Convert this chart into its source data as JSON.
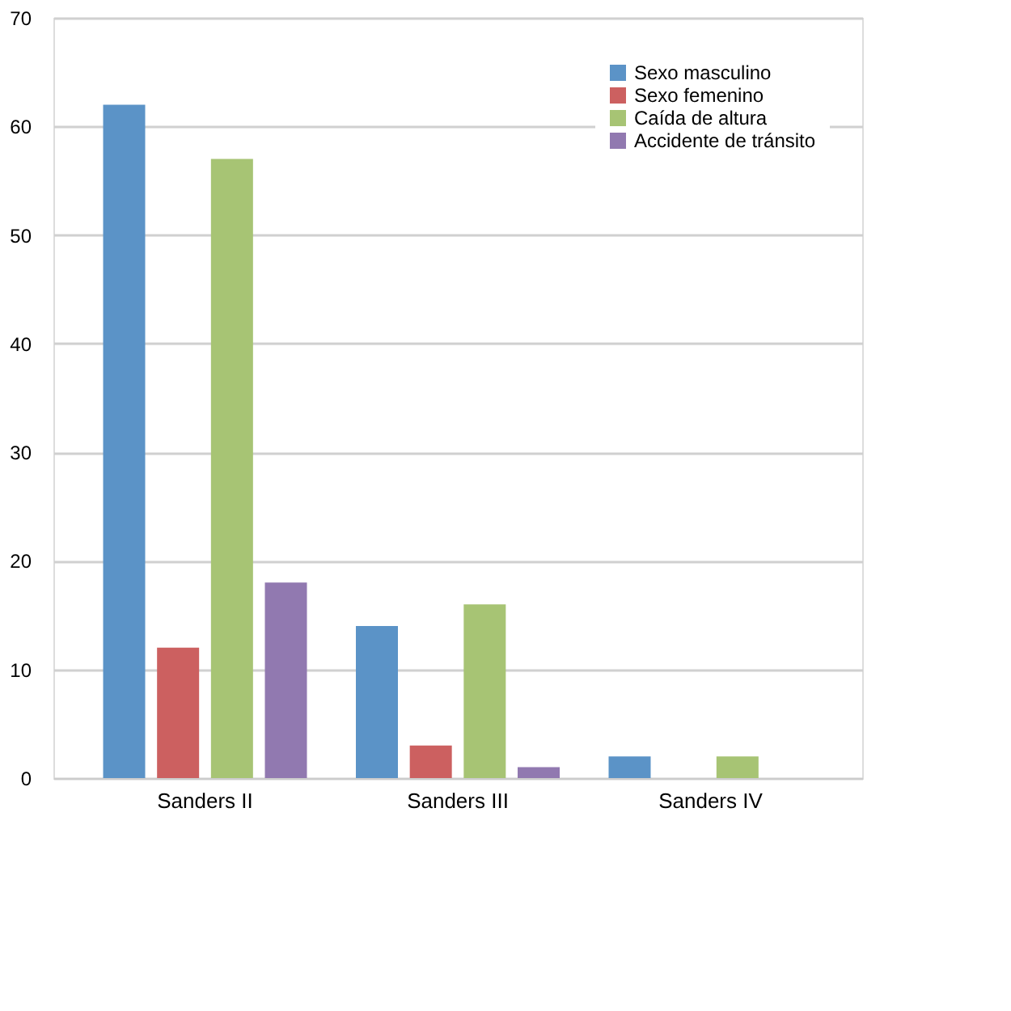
{
  "chart_data": {
    "type": "bar",
    "categories": [
      "Sanders II",
      "Sanders III",
      "Sanders IV"
    ],
    "series": [
      {
        "name": "Sexo masculino",
        "color": "#5b93c7",
        "values": [
          62,
          14,
          2
        ]
      },
      {
        "name": "Sexo femenino",
        "color": "#cc6060",
        "values": [
          12,
          3,
          0
        ]
      },
      {
        "name": "Caída de altura",
        "color": "#a7c474",
        "values": [
          57,
          16,
          2
        ]
      },
      {
        "name": "Accidente de tránsito",
        "color": "#9179b0",
        "values": [
          18,
          1,
          0
        ]
      }
    ],
    "ylim": [
      0,
      70
    ],
    "yticks": [
      0,
      10,
      20,
      30,
      40,
      50,
      60,
      70
    ],
    "grid": "y",
    "legend": "top right"
  }
}
